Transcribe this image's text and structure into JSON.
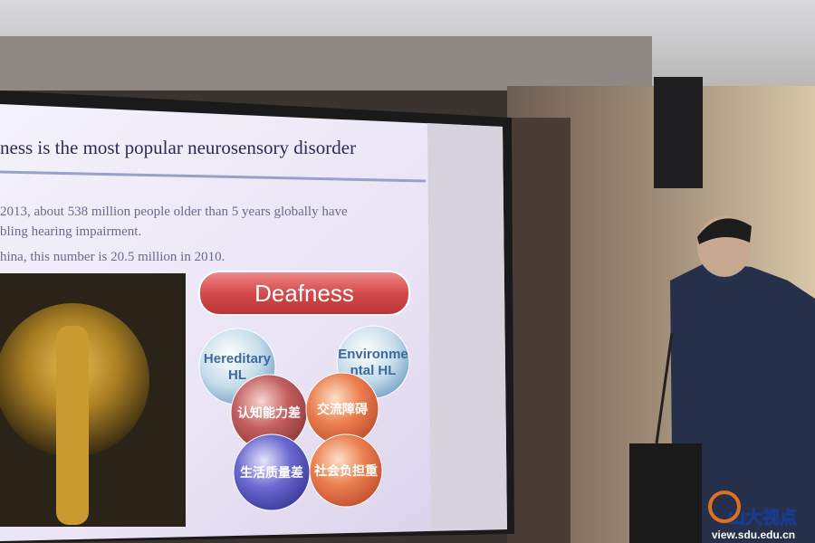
{
  "slide": {
    "title": "ness is the most popular neurosensory disorder",
    "bullets": [
      "2013, about 538 million people older than 5 years globally have",
      "bling hearing impairment.",
      "hina, this number is 20.5 million in 2010."
    ],
    "diagram": {
      "title": "Deafness",
      "circles": [
        {
          "lines": [
            "Hereditary",
            "HL"
          ]
        },
        {
          "lines": [
            "Environme",
            "ntal HL"
          ]
        },
        {
          "lines": [
            "认知能力差"
          ]
        },
        {
          "lines": [
            "交流障碍"
          ]
        },
        {
          "lines": [
            "生活质量差"
          ]
        },
        {
          "lines": [
            "社会负担重"
          ]
        }
      ]
    }
  },
  "watermark": {
    "name": "山大视点",
    "url": "view.sdu.edu.cn"
  }
}
